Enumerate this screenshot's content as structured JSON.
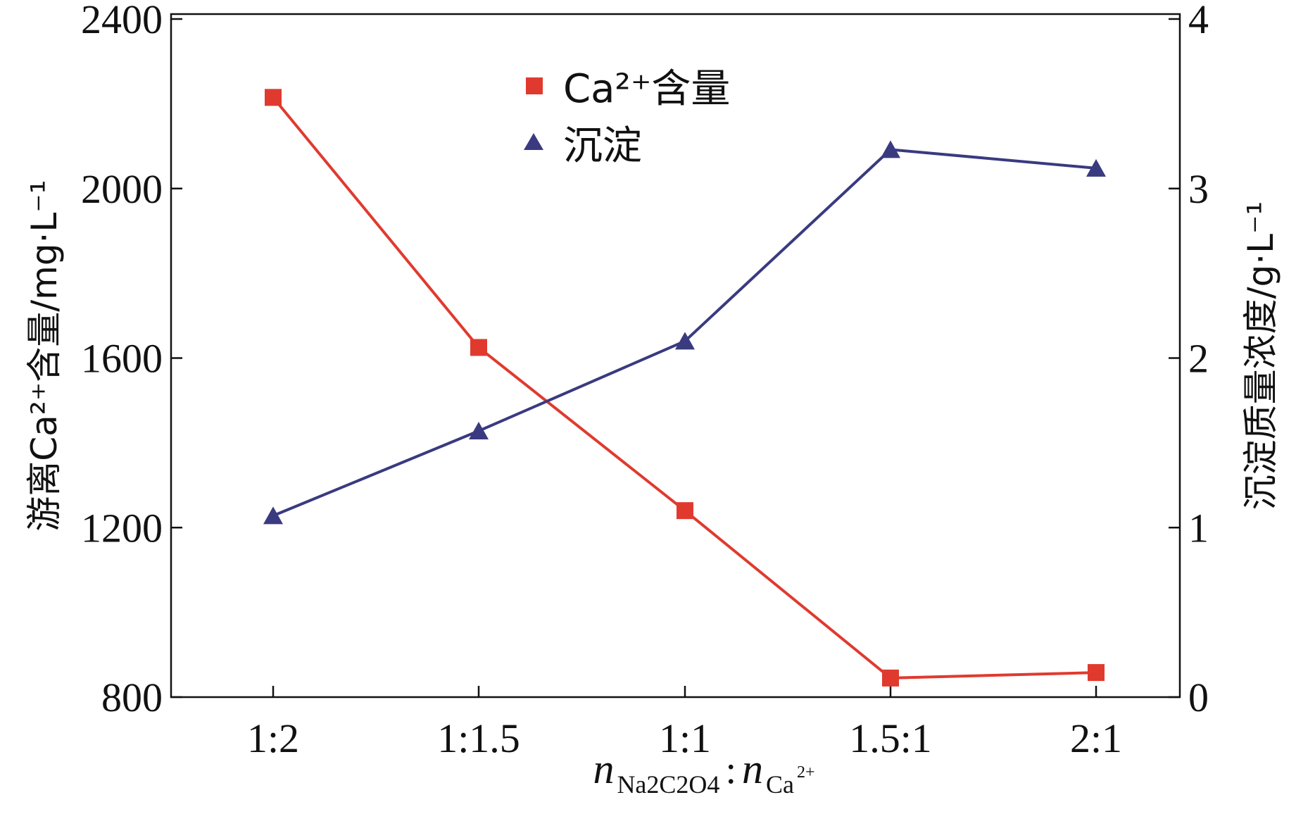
{
  "chart_data": {
    "type": "line",
    "title": "",
    "categories": [
      "1:2",
      "1:1.5",
      "1:1",
      "1.5:1",
      "2:1"
    ],
    "xlabel": {
      "n1": "n",
      "sub1": "Na2C2O4",
      "colon": ":",
      "n2": "n",
      "sub2": "Ca",
      "sub2_sup": "2+"
    },
    "ylabel_left": "游离Ca²⁺含量/mg·L⁻¹",
    "ylabel_right": "沉淀质量浓度/g·L⁻¹",
    "ylim_left": [
      800,
      2400
    ],
    "yticks_left": [
      800,
      1200,
      1600,
      2000,
      2400
    ],
    "ylim_right": [
      0,
      4
    ],
    "yticks_right": [
      0,
      1,
      2,
      3,
      4
    ],
    "series": [
      {
        "name": "Ca²⁺含量",
        "axis": "left",
        "marker": "square",
        "color": "#e03a2f",
        "values": [
          2215,
          1625,
          1240,
          845,
          858
        ]
      },
      {
        "name": "沉淀",
        "axis": "right",
        "marker": "triangle",
        "color": "#3a3a80",
        "values": [
          1.07,
          1.57,
          2.1,
          3.23,
          3.12
        ]
      }
    ],
    "legend": {
      "placement": "top-center",
      "labels": [
        "Ca²⁺含量",
        "沉淀"
      ]
    },
    "grid": false
  }
}
